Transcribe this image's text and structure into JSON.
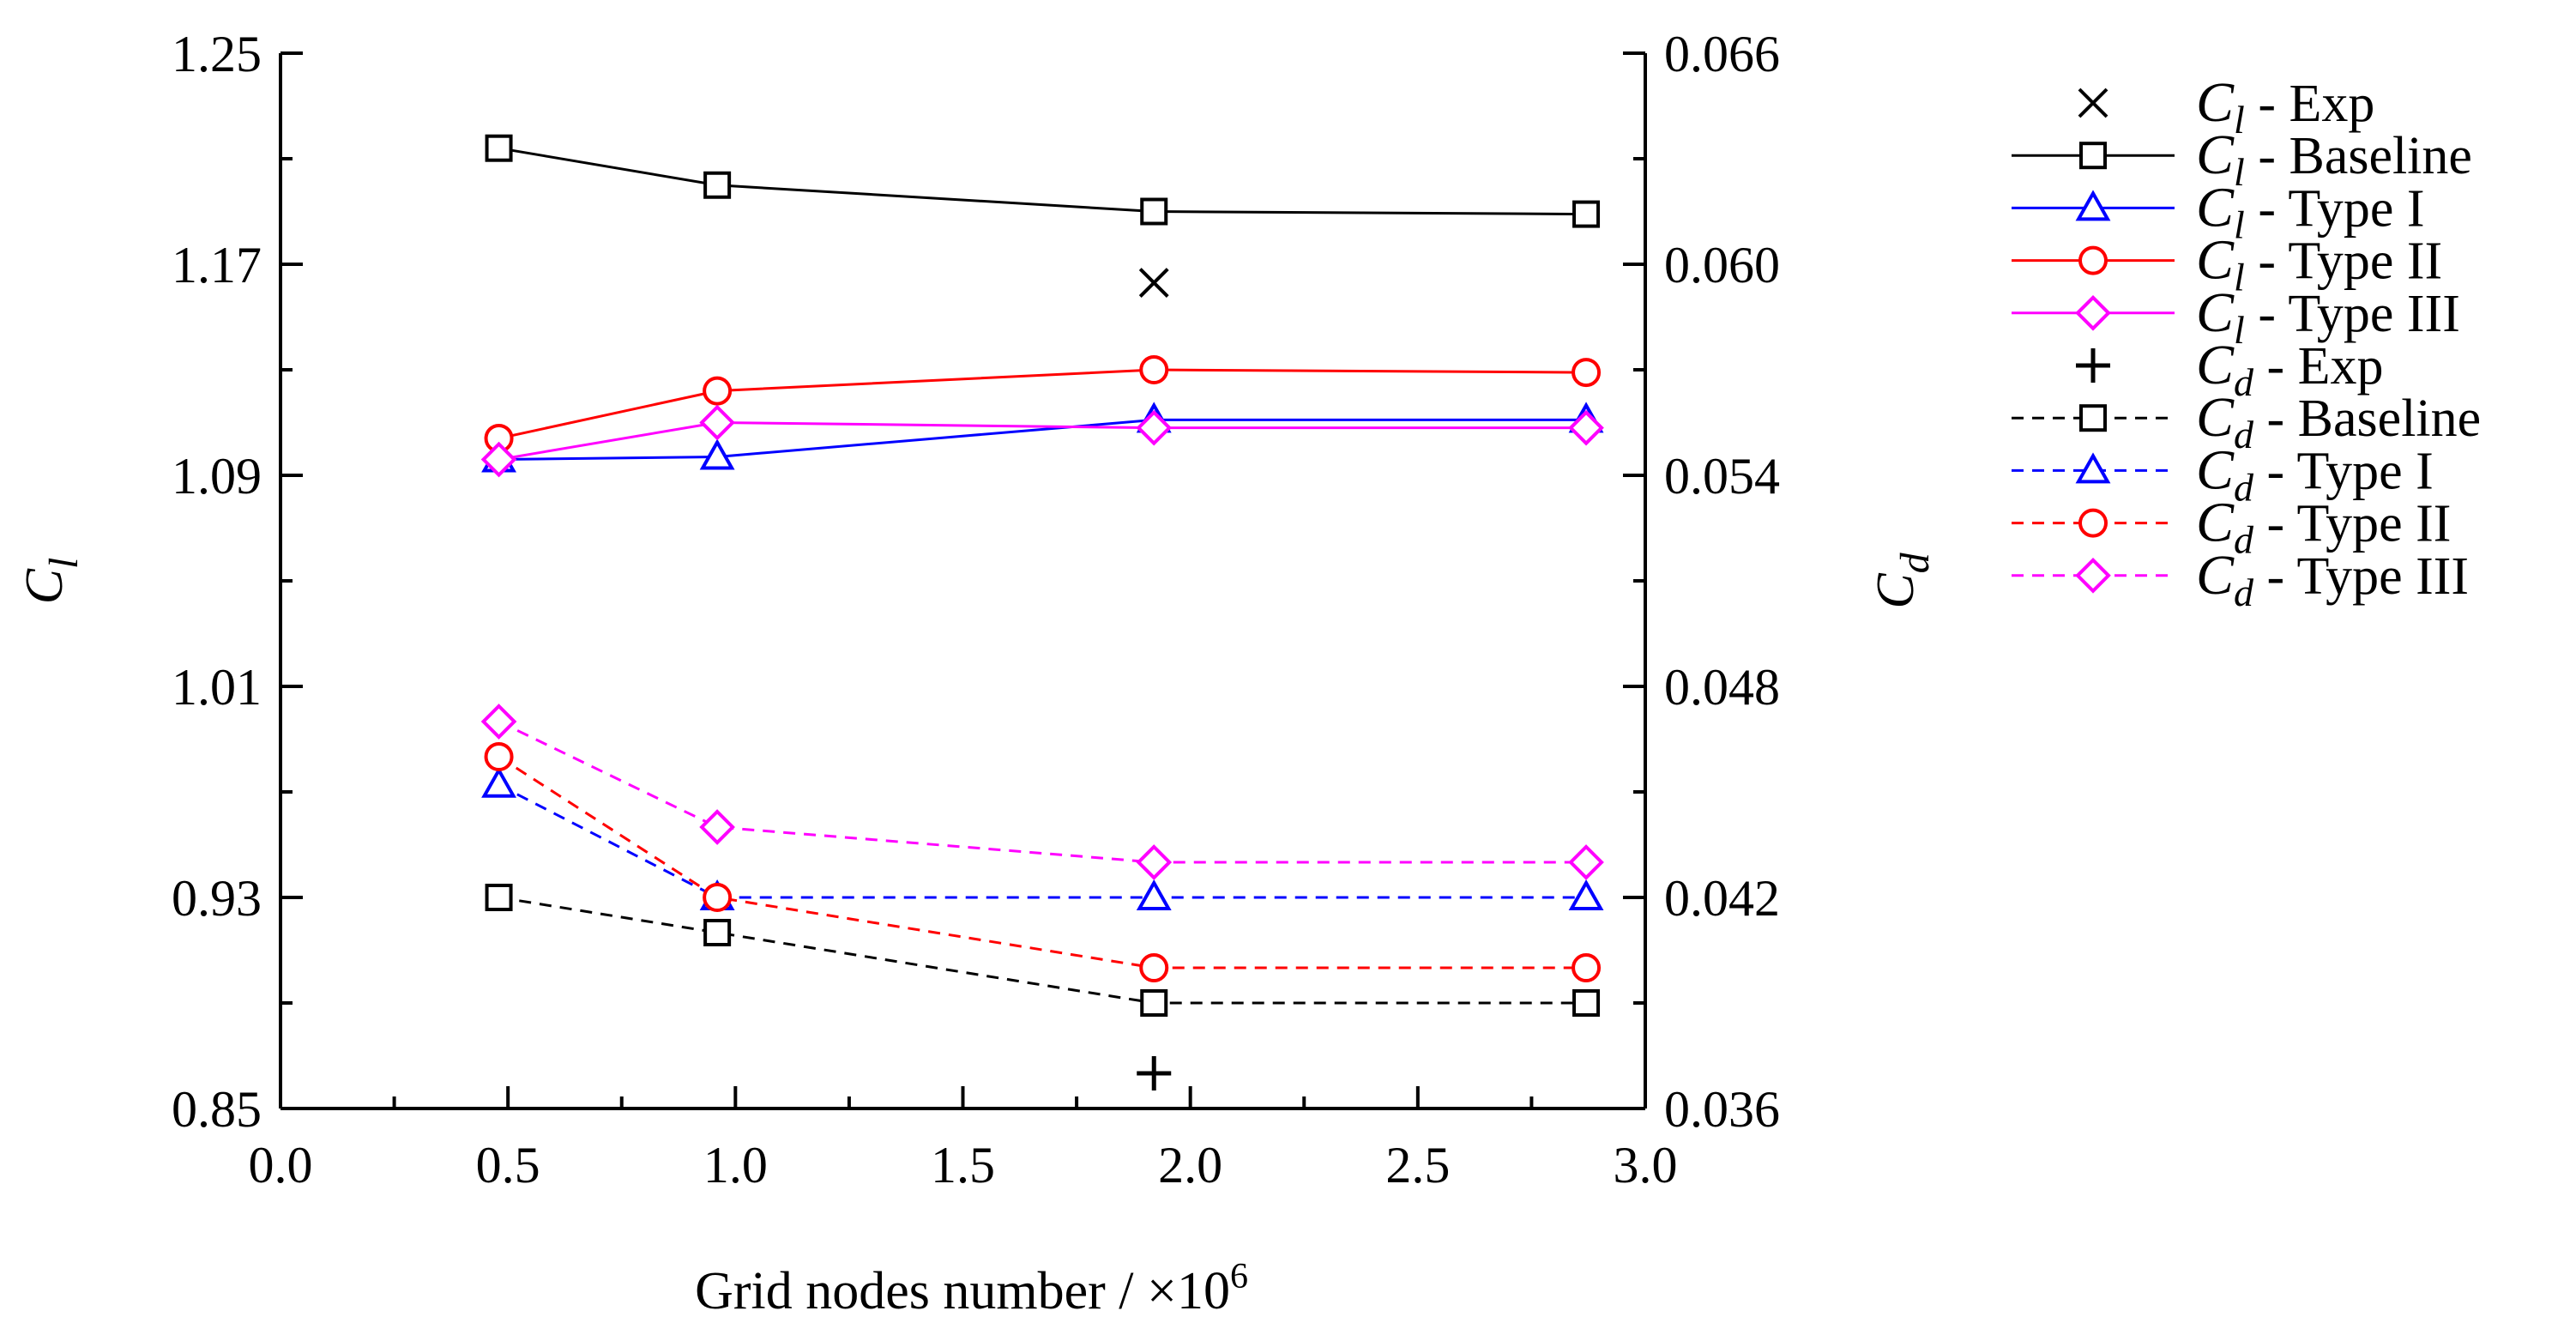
{
  "chart_data": {
    "type": "line",
    "xlabel": "Grid nodes number / ×10",
    "xlabel_sup": "6",
    "ylabel_left": {
      "main": "C",
      "sub": "l"
    },
    "ylabel_right": {
      "main": "C",
      "sub": "d"
    },
    "x_axis": {
      "min": 0.0,
      "max": 3.0,
      "ticks": [
        "0.0",
        "0.5",
        "1.0",
        "1.5",
        "2.0",
        "2.5",
        "3.0"
      ],
      "minor_step": 0.25
    },
    "y_left": {
      "min": 0.85,
      "max": 1.25,
      "ticks": [
        "0.85",
        "0.93",
        "1.01",
        "1.09",
        "1.17",
        "1.25"
      ]
    },
    "y_right": {
      "min": 0.036,
      "max": 0.066,
      "ticks": [
        "0.036",
        "0.042",
        "0.048",
        "0.054",
        "0.060",
        "0.066"
      ]
    },
    "grid": false,
    "legend_position": "right",
    "series": [
      {
        "name": "Exp",
        "coef": "l",
        "axis": "left",
        "marker": "x",
        "dash": "none",
        "color": "#000000",
        "x": [
          1.92
        ],
        "values": [
          1.163
        ]
      },
      {
        "name": "Baseline",
        "coef": "l",
        "axis": "left",
        "marker": "square",
        "dash": "solid",
        "color": "#000000",
        "x": [
          0.48,
          0.96,
          1.92,
          2.87
        ],
        "values": [
          1.214,
          1.2,
          1.19,
          1.189
        ]
      },
      {
        "name": "Type I",
        "coef": "l",
        "axis": "left",
        "marker": "triangle",
        "dash": "solid",
        "color": "#0000ff",
        "x": [
          0.48,
          0.96,
          1.92,
          2.87
        ],
        "values": [
          1.096,
          1.097,
          1.111,
          1.111
        ]
      },
      {
        "name": "Type II",
        "coef": "l",
        "axis": "left",
        "marker": "circle",
        "dash": "solid",
        "color": "#ff0000",
        "x": [
          0.48,
          0.96,
          1.92,
          2.87
        ],
        "values": [
          1.104,
          1.122,
          1.13,
          1.129
        ]
      },
      {
        "name": "Type III",
        "coef": "l",
        "axis": "left",
        "marker": "diamond",
        "dash": "solid",
        "color": "#ff00ff",
        "x": [
          0.48,
          0.96,
          1.92,
          2.87
        ],
        "values": [
          1.096,
          1.11,
          1.108,
          1.108
        ]
      },
      {
        "name": "Exp",
        "coef": "d",
        "axis": "right",
        "marker": "plus",
        "dash": "none",
        "color": "#000000",
        "x": [
          1.92
        ],
        "values": [
          0.037
        ]
      },
      {
        "name": "Baseline",
        "coef": "d",
        "axis": "right",
        "marker": "square",
        "dash": "dashed",
        "color": "#000000",
        "x": [
          0.48,
          0.96,
          1.92,
          2.87
        ],
        "values": [
          0.042,
          0.041,
          0.039,
          0.039
        ]
      },
      {
        "name": "Type I",
        "coef": "d",
        "axis": "right",
        "marker": "triangle",
        "dash": "dashed",
        "color": "#0000ff",
        "x": [
          0.48,
          0.96,
          1.92,
          2.87
        ],
        "values": [
          0.0452,
          0.042,
          0.042,
          0.042
        ]
      },
      {
        "name": "Type II",
        "coef": "d",
        "axis": "right",
        "marker": "circle",
        "dash": "dashed",
        "color": "#ff0000",
        "x": [
          0.48,
          0.96,
          1.92,
          2.87
        ],
        "values": [
          0.046,
          0.042,
          0.04,
          0.04
        ]
      },
      {
        "name": "Type III",
        "coef": "d",
        "axis": "right",
        "marker": "diamond",
        "dash": "dashed",
        "color": "#ff00ff",
        "x": [
          0.48,
          0.96,
          1.92,
          2.87
        ],
        "values": [
          0.047,
          0.044,
          0.043,
          0.043
        ]
      }
    ]
  }
}
